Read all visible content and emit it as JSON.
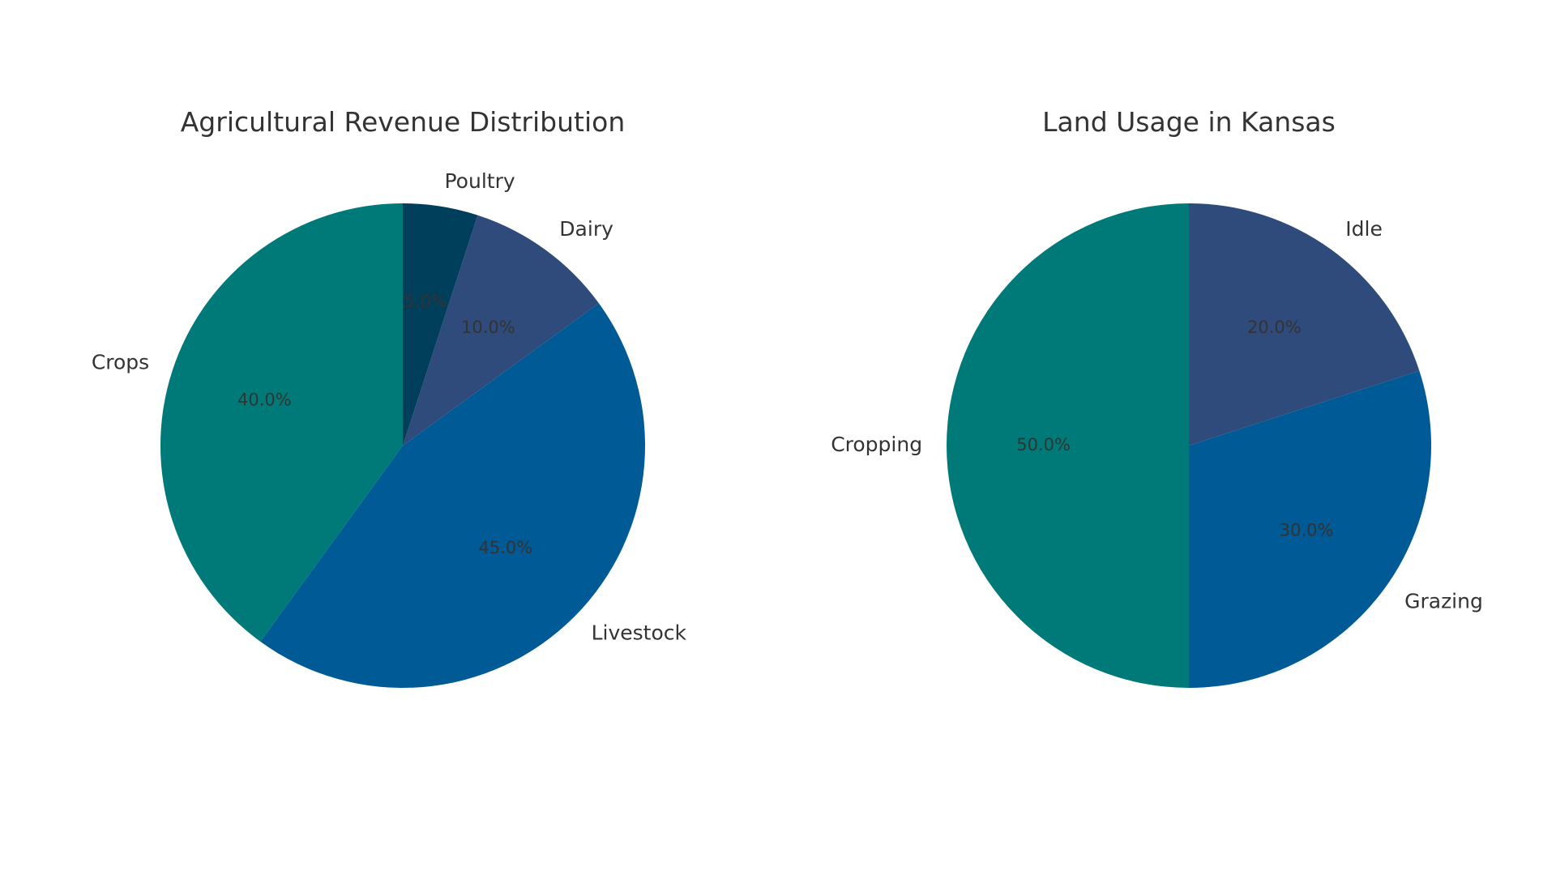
{
  "chart_data": [
    {
      "type": "pie",
      "title": "Agricultural Revenue Distribution",
      "labels": [
        "Crops",
        "Livestock",
        "Dairy",
        "Poultry"
      ],
      "values": [
        40,
        45,
        10,
        5
      ],
      "percent_labels": [
        "40.0%",
        "45.0%",
        "10.0%",
        "5.0%"
      ],
      "colors": [
        "#007a78",
        "#005a96",
        "#2f4b7c",
        "#003f5c"
      ],
      "start_angle_deg": 90,
      "direction": "counterclockwise"
    },
    {
      "type": "pie",
      "title": "Land Usage in Kansas",
      "labels": [
        "Cropping",
        "Grazing",
        "Idle"
      ],
      "values": [
        50,
        30,
        20
      ],
      "percent_labels": [
        "50.0%",
        "30.0%",
        "20.0%"
      ],
      "colors": [
        "#007a78",
        "#005a96",
        "#2f4b7c"
      ],
      "start_angle_deg": 90,
      "direction": "counterclockwise"
    }
  ]
}
